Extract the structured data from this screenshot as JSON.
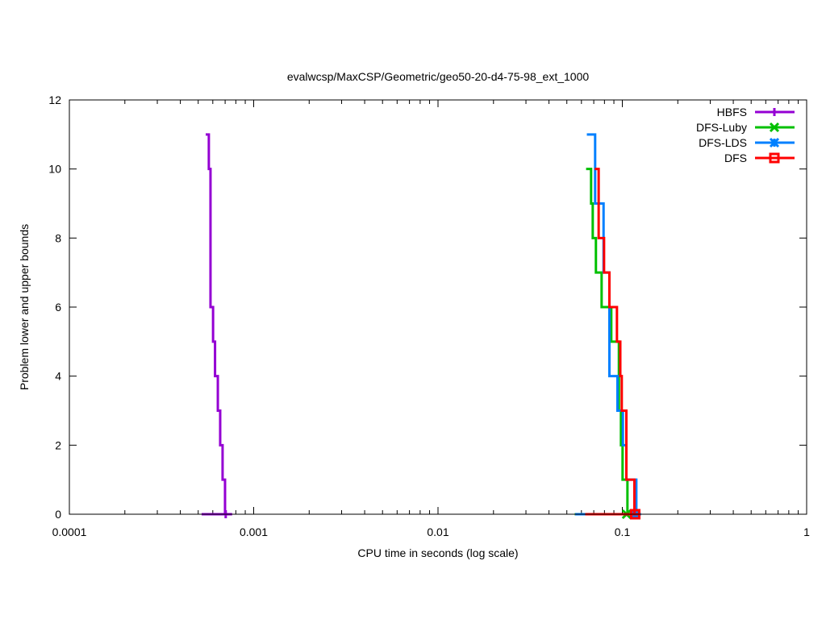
{
  "chart_data": {
    "type": "line",
    "title": "evalwcsp/MaxCSP/Geometric/geo50-20-d4-75-98_ext_1000",
    "xlabel": "CPU time in seconds (log scale)",
    "ylabel": "Problem lower and upper bounds",
    "xscale": "log",
    "xlim": [
      0.0001,
      1
    ],
    "ylim": [
      0,
      12
    ],
    "xticks": [
      0.0001,
      0.001,
      0.01,
      0.1,
      1
    ],
    "xtick_labels": [
      "0.0001",
      "0.001",
      "0.01",
      "0.1",
      "1"
    ],
    "yticks": [
      0,
      2,
      4,
      6,
      8,
      10,
      12
    ],
    "ytick_labels": [
      "0",
      "2",
      "4",
      "6",
      "8",
      "10",
      "12"
    ],
    "legend_position": "top-right",
    "series": [
      {
        "name": "HBFS",
        "color": "#9400d3",
        "marker": "plus",
        "upper_steps": [
          [
            0.000549,
            11
          ],
          [
            0.000571,
            10
          ],
          [
            0.000583,
            6
          ],
          [
            0.000602,
            5
          ],
          [
            0.000617,
            4
          ],
          [
            0.000639,
            3
          ],
          [
            0.000658,
            2
          ],
          [
            0.000678,
            1
          ],
          [
            0.000699,
            0
          ]
        ],
        "lower_bound": [
          [
            0.000522,
            0
          ],
          [
            0.000764,
            0
          ]
        ],
        "marker_at": [
          0.000705,
          0
        ]
      },
      {
        "name": "DFS-Luby",
        "color": "#00c000",
        "marker": "cross",
        "upper_steps": [
          [
            0.0636,
            10
          ],
          [
            0.0677,
            9
          ],
          [
            0.0691,
            8
          ],
          [
            0.0719,
            7
          ],
          [
            0.0772,
            6
          ],
          [
            0.0871,
            5
          ],
          [
            0.0958,
            3
          ],
          [
            0.0983,
            2
          ],
          [
            0.1003,
            1
          ],
          [
            0.1066,
            0
          ]
        ],
        "lower_bound": [
          [
            0.0552,
            0
          ],
          [
            0.1066,
            0
          ]
        ],
        "marker_at": [
          0.1055,
          0
        ]
      },
      {
        "name": "DFS-LDS",
        "color": "#0080ff",
        "marker": "star",
        "upper_steps": [
          [
            0.0642,
            11
          ],
          [
            0.0712,
            9
          ],
          [
            0.0791,
            7
          ],
          [
            0.0851,
            4
          ],
          [
            0.0941,
            3
          ],
          [
            0.1007,
            2
          ],
          [
            0.1052,
            1
          ],
          [
            0.1191,
            0
          ]
        ],
        "lower_bound": [
          [
            0.0555,
            0
          ],
          [
            0.1264,
            0
          ]
        ],
        "marker_at": [
          0.1175,
          0
        ]
      },
      {
        "name": "DFS",
        "color": "#ff0000",
        "marker": "square",
        "upper_steps": [
          [
            0.0708,
            10
          ],
          [
            0.0744,
            8
          ],
          [
            0.0796,
            7
          ],
          [
            0.0851,
            6
          ],
          [
            0.0935,
            5
          ],
          [
            0.0975,
            4
          ],
          [
            0.0993,
            3
          ],
          [
            0.1052,
            1
          ],
          [
            0.1163,
            0
          ]
        ],
        "lower_bound": [
          [
            0.0629,
            0
          ],
          [
            0.123,
            0
          ]
        ],
        "marker_at": [
          0.1175,
          0
        ]
      }
    ]
  }
}
